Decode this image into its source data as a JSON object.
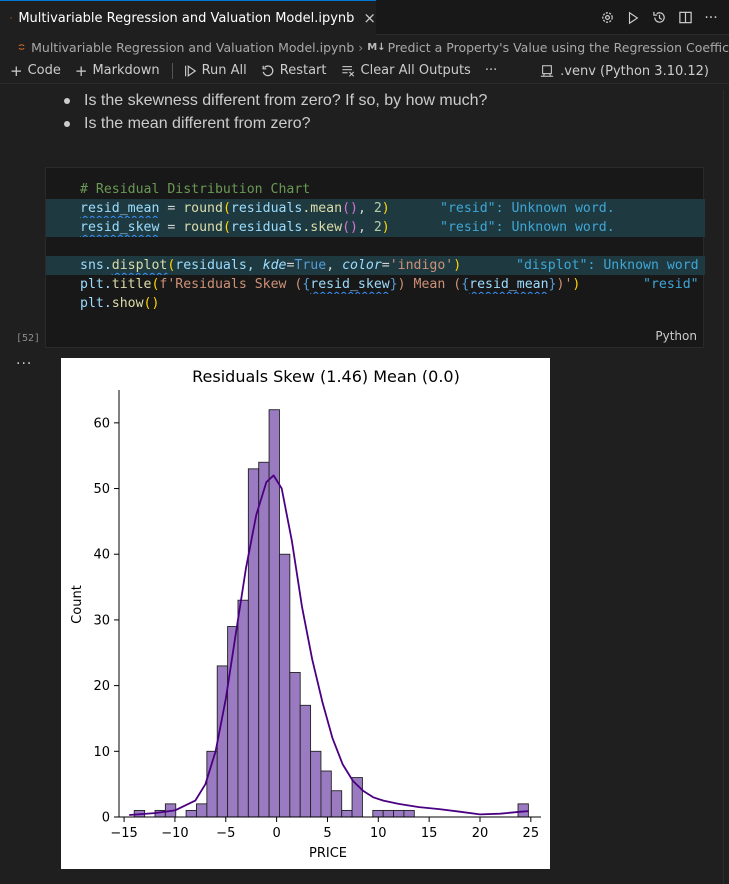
{
  "tab": {
    "title": "Multivariable Regression and Valuation Model.ipynb",
    "close": "×"
  },
  "breadcrumb": {
    "file": "Multivariable Regression and Valuation Model.ipynb",
    "md_badge": "M↓",
    "section": "Predict a Property's Value using the Regression Coeffic"
  },
  "toolbar": {
    "code": "Code",
    "markdown": "Markdown",
    "run_all": "Run All",
    "restart": "Restart",
    "clear_outputs": "Clear All Outputs",
    "more": "···",
    "kernel": ".venv (Python 3.10.12)"
  },
  "markdown": {
    "items": [
      "Is the skewness different from zero? If so, by how much?",
      "Is the mean different from zero?"
    ]
  },
  "cell": {
    "comment": "# Residual Distribution Chart",
    "l2": {
      "var": "resid_mean",
      "op": " = ",
      "fn": "round",
      "p1": "(",
      "obj": "residuals",
      "meth": ".mean",
      "p2": "()",
      "sep": ", ",
      "num": "2",
      "p3": ")",
      "diag": "\"resid\": Unknown word."
    },
    "l3": {
      "var": "resid_skew",
      "op": " = ",
      "fn": "round",
      "p1": "(",
      "obj": "residuals",
      "meth": ".skew",
      "p2": "()",
      "sep": ", ",
      "num": "2",
      "p3": ")",
      "diag": "\"resid\": Unknown word."
    },
    "l5": {
      "mod": "sns.",
      "fn": "displot",
      "p1": "(",
      "obj": "residuals, ",
      "k1": "kde",
      "eq1": "=",
      "v1": "True",
      "c1": ", ",
      "k2": "color",
      "eq2": "=",
      "v2": "'indigo'",
      "p3": ")",
      "diag": "\"displot\": Unknown word"
    },
    "l6": {
      "mod": "plt.",
      "fn": "title",
      "p1": "(",
      "s1": "f'Residuals Skew (",
      "b1": "{",
      "e1": "resid_skew",
      "b2": "}",
      "s2": ") Mean (",
      "b3": "{",
      "e2": "resid_mean",
      "b4": "}",
      "s3": ")'",
      "p3": ")",
      "diag": "\"resid\""
    },
    "l7": {
      "mod": "plt.",
      "fn": "show",
      "p": "()"
    },
    "lang": "Python",
    "exec_count": "[52]",
    "output_menu": "···"
  },
  "chart_data": {
    "type": "bar",
    "title": "Residuals Skew (1.46) Mean (0.0)",
    "xlabel": "PRICE",
    "ylabel": "Count",
    "xlim": [
      -15.5,
      26
    ],
    "ylim": [
      0,
      65
    ],
    "xticks": [
      -15,
      -10,
      -5,
      0,
      5,
      10,
      15,
      20,
      25
    ],
    "yticks": [
      0,
      10,
      20,
      30,
      40,
      50,
      60
    ],
    "tick_labels_x": [
      "−15",
      "−10",
      "−5",
      "0",
      "5",
      "10",
      "15",
      "20",
      "25"
    ],
    "tick_labels_y": [
      "0",
      "10",
      "20",
      "30",
      "40",
      "50",
      "60"
    ],
    "bin_start": -14.0,
    "bin_width": 1.02,
    "counts": [
      1,
      0,
      1,
      2,
      0,
      1,
      2,
      10,
      23,
      29,
      33,
      53,
      54,
      62,
      40,
      22,
      17,
      10,
      7,
      4,
      1,
      6,
      0,
      1,
      1,
      1,
      1,
      0,
      0,
      0,
      0,
      0,
      0,
      0,
      0,
      0,
      0,
      2
    ],
    "bar_color": "#9a7bc1",
    "edge_color": "#222222",
    "kde": {
      "color": "#4b0082",
      "points": [
        [
          -14.5,
          0.3
        ],
        [
          -12,
          0.6
        ],
        [
          -10,
          1.0
        ],
        [
          -8,
          2.5
        ],
        [
          -7,
          5
        ],
        [
          -6,
          10
        ],
        [
          -5,
          18
        ],
        [
          -4,
          28
        ],
        [
          -3,
          38
        ],
        [
          -2,
          46
        ],
        [
          -1,
          51
        ],
        [
          -0.3,
          52
        ],
        [
          0.5,
          50
        ],
        [
          1.5,
          42
        ],
        [
          2.5,
          32
        ],
        [
          3.5,
          24
        ],
        [
          4.5,
          17.5
        ],
        [
          5.5,
          12
        ],
        [
          6.5,
          8
        ],
        [
          7.5,
          5.5
        ],
        [
          8.5,
          4
        ],
        [
          9.5,
          3
        ],
        [
          10.5,
          2.5
        ],
        [
          12,
          2
        ],
        [
          14,
          1.5
        ],
        [
          16,
          1.2
        ],
        [
          18,
          0.8
        ],
        [
          20,
          0.4
        ],
        [
          22,
          0.5
        ],
        [
          24,
          0.8
        ],
        [
          24.8,
          0.9
        ]
      ]
    }
  }
}
